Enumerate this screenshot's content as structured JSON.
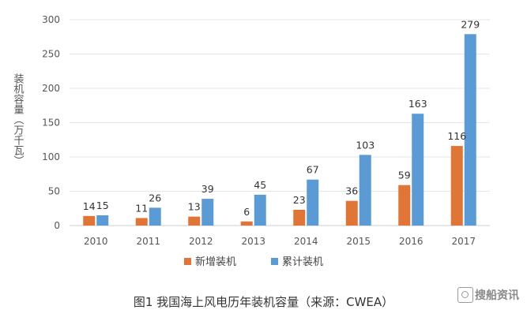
{
  "chart_data": {
    "type": "bar",
    "title": "",
    "xlabel": "",
    "ylabel": "装机容量（万千瓦）",
    "categories": [
      "2010",
      "2011",
      "2012",
      "2013",
      "2014",
      "2015",
      "2016",
      "2017"
    ],
    "series": [
      {
        "name": "新增装机",
        "values": [
          14,
          11,
          13,
          6,
          23,
          36,
          59,
          116
        ],
        "color": "#E07535"
      },
      {
        "name": "累计装机",
        "values": [
          15,
          26,
          39,
          45,
          67,
          103,
          163,
          279
        ],
        "color": "#5B9BD5"
      }
    ],
    "ylim": [
      0,
      300
    ],
    "yticks": [
      0,
      50,
      100,
      150,
      200,
      250,
      300
    ],
    "grid": true,
    "legend_position": "bottom"
  },
  "caption": "图1 我国海上风电历年装机容量（来源：CWEA）",
  "watermark": {
    "text": "搜船资讯",
    "icon": "ship-logo-icon"
  }
}
